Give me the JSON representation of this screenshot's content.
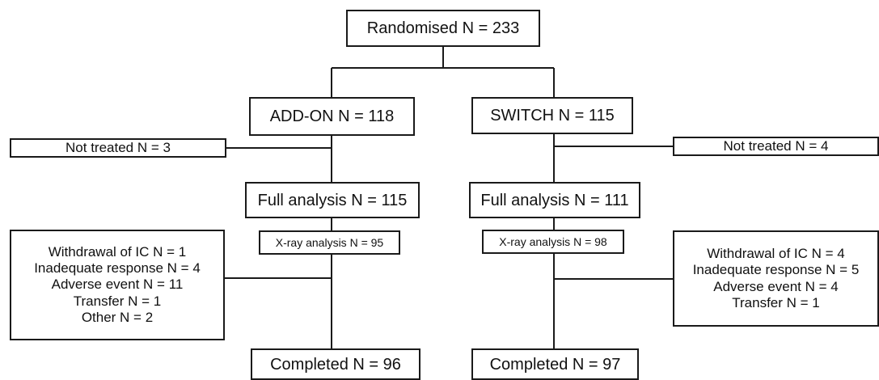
{
  "randomised": "Randomised  N = 233",
  "left": {
    "arm": "ADD-ON N = 118",
    "not_treated": "Not treated N = 3",
    "full_analysis": "Full analysis N = 115",
    "xray": "X-ray analysis N = 95",
    "discontinued": [
      "Withdrawal of IC N = 1",
      "Inadequate response N = 4",
      "Adverse event N = 11",
      "Transfer N = 1",
      "Other N = 2"
    ],
    "completed": "Completed N = 96"
  },
  "right": {
    "arm": "SWITCH N = 115",
    "not_treated": "Not treated N = 4",
    "full_analysis": "Full analysis N = 111",
    "xray": "X-ray analysis N = 98",
    "discontinued": [
      "Withdrawal of IC N = 4",
      "Inadequate  response N = 5",
      "Adverse event N = 4",
      "Transfer N = 1"
    ],
    "completed": "Completed N = 97"
  }
}
